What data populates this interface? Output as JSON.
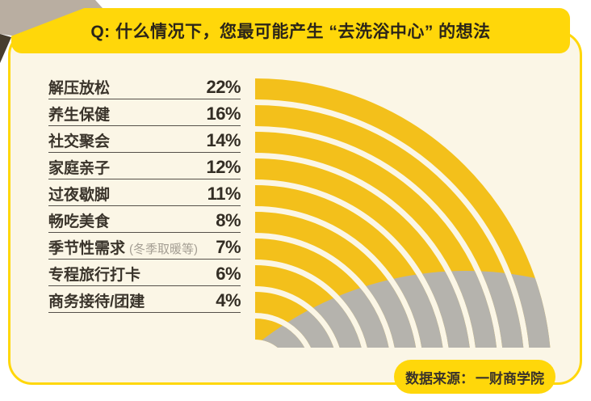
{
  "title": "Q: 什么情况下，您最可能产生 “去洗浴中心” 的想法",
  "source": {
    "prefix": "数据来源：",
    "brand": "一财商学院"
  },
  "rows": [
    {
      "label": "解压放松",
      "note": "",
      "value": "22%"
    },
    {
      "label": "养生保健",
      "note": "",
      "value": "16%"
    },
    {
      "label": "社交聚会",
      "note": "",
      "value": "14%"
    },
    {
      "label": "家庭亲子",
      "note": "",
      "value": "12%"
    },
    {
      "label": "过夜歇脚",
      "note": "",
      "value": "11%"
    },
    {
      "label": "畅吃美食",
      "note": "",
      "value": "8%"
    },
    {
      "label": "季节性需求",
      "note": "(冬季取暖等)",
      "value": "7%"
    },
    {
      "label": "专程旅行打卡",
      "note": "",
      "value": "6%"
    },
    {
      "label": "商务接待/团建",
      "note": "",
      "value": "4%"
    }
  ],
  "chart_data": {
    "type": "radial_bar",
    "title": "Q: 什么情况下，您最可能产生 “去洗浴中心” 的想法",
    "categories": [
      "解压放松",
      "养生保健",
      "社交聚会",
      "家庭亲子",
      "过夜歇脚",
      "畅吃美食",
      "季节性需求 (冬季取暖等)",
      "专程旅行打卡",
      "商务接待/团建"
    ],
    "values": [
      22,
      16,
      14,
      12,
      11,
      8,
      7,
      6,
      4
    ],
    "unit": "%",
    "legend_position": "none",
    "grid": false,
    "note": "concentric quarter arcs, outermost ring = largest value; yellow arc with gray tail segment",
    "source": "数据来源：一财商学院"
  },
  "colors": {
    "banner_yellow": "#FFD70A",
    "arc_yellow": "#F3C01B",
    "arc_gray": "#B5B3AD",
    "card_bg": "#FBF6E6",
    "border_yellow": "#FFD70A",
    "text_dark": "#332D24",
    "note_gray": "#A49E93",
    "ribbon_taupe": "#B9AEA1",
    "ribbon_shadow": "#473D2E"
  }
}
